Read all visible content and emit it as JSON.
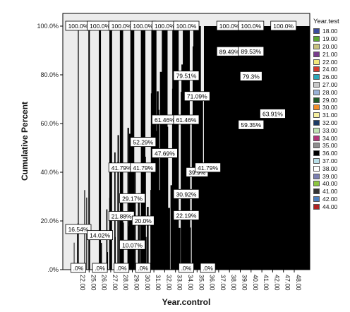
{
  "chart_data": {
    "type": "bar",
    "xlabel": "Year.control",
    "ylabel": "Cumulative Percent",
    "ylim": [
      0,
      100
    ],
    "yticks": [
      ".0%",
      "20.0%",
      "40.0%",
      "60.0%",
      "80.0%",
      "100.0%"
    ],
    "ytick_values": [
      0,
      20,
      40,
      60,
      80,
      100
    ],
    "categories": [
      "22.00",
      "25.00",
      "26.00",
      "27.00",
      "28.00",
      "29.00",
      "30.00",
      "31.00",
      "32.00",
      "33.00",
      "34.00",
      "35.00",
      "36.00",
      "37.00",
      "38.00",
      "39.00",
      "40.00",
      "41.00",
      "42.00",
      "47.00",
      "48.00"
    ],
    "groups": [
      {
        "category": "22.00",
        "labels": [
          ".0%",
          "16.54%",
          "100.0%"
        ]
      },
      {
        "category": "26.00",
        "labels": [
          ".0%",
          "14.02%",
          "100.0%"
        ]
      },
      {
        "category": "28.00",
        "labels": [
          ".0%",
          "21.88%",
          "41.79%",
          "100.0%"
        ]
      },
      {
        "category": "29.00",
        "labels": [
          "10.07%",
          "29.17%"
        ]
      },
      {
        "category": "30.00",
        "labels": [
          ".0%",
          "20.0%",
          "41.79%",
          "52.29%",
          "100.0%"
        ]
      },
      {
        "category": "32.00",
        "labels": [
          "61.46%",
          "47.69%",
          "100.0%"
        ]
      },
      {
        "category": "34.00",
        "labels": [
          ".0%",
          "22.19%",
          "30.92%",
          "61.46%",
          "79.51%",
          "100.0%"
        ]
      },
      {
        "category": "35.00",
        "labels": [
          "39.9%",
          "71.09%"
        ]
      },
      {
        "category": "36.00",
        "labels": [
          ".0%",
          "41.79%"
        ]
      },
      {
        "category": "38.00",
        "labels": [
          "89.49%",
          "100.0%"
        ]
      },
      {
        "category": "40.00",
        "labels": [
          "59.35%",
          "79.3%",
          "89.53%",
          "100.0%"
        ]
      },
      {
        "category": "42.00",
        "labels": [
          "63.91%"
        ]
      },
      {
        "category": "47.00",
        "labels": [
          "100.0%"
        ]
      }
    ],
    "legend": {
      "title": "Year.test",
      "placement": "right",
      "entries": [
        {
          "name": "18.00",
          "color": "#3b4c9e"
        },
        {
          "name": "19.00",
          "color": "#5aa832"
        },
        {
          "name": "20.00",
          "color": "#c8c17e"
        },
        {
          "name": "21.00",
          "color": "#7a3d8e"
        },
        {
          "name": "22.00",
          "color": "#f3e87a"
        },
        {
          "name": "24.00",
          "color": "#d63a2f"
        },
        {
          "name": "26.00",
          "color": "#2aa7b8"
        },
        {
          "name": "27.00",
          "color": "#c9c9c9"
        },
        {
          "name": "28.00",
          "color": "#9ab2d8"
        },
        {
          "name": "29.00",
          "color": "#1f5b2a"
        },
        {
          "name": "30.00",
          "color": "#f28c28"
        },
        {
          "name": "31.00",
          "color": "#f7f0a0"
        },
        {
          "name": "32.00",
          "color": "#1c3b66"
        },
        {
          "name": "33.00",
          "color": "#bfe3b4"
        },
        {
          "name": "34.00",
          "color": "#b2357a"
        },
        {
          "name": "35.00",
          "color": "#8f8f8f"
        },
        {
          "name": "36.00",
          "color": "#000000"
        },
        {
          "name": "37.00",
          "color": "#b8dfe8"
        },
        {
          "name": "38.00",
          "color": "#ffffff"
        },
        {
          "name": "39.00",
          "color": "#7c80b3"
        },
        {
          "name": "40.00",
          "color": "#8cc63f"
        },
        {
          "name": "41.00",
          "color": "#333333"
        },
        {
          "name": "42.00",
          "color": "#4a7fc1"
        },
        {
          "name": "44.00",
          "color": "#b22222"
        }
      ]
    },
    "colors": {
      "plot_bg": "#ececec",
      "bars": "#000000"
    }
  }
}
